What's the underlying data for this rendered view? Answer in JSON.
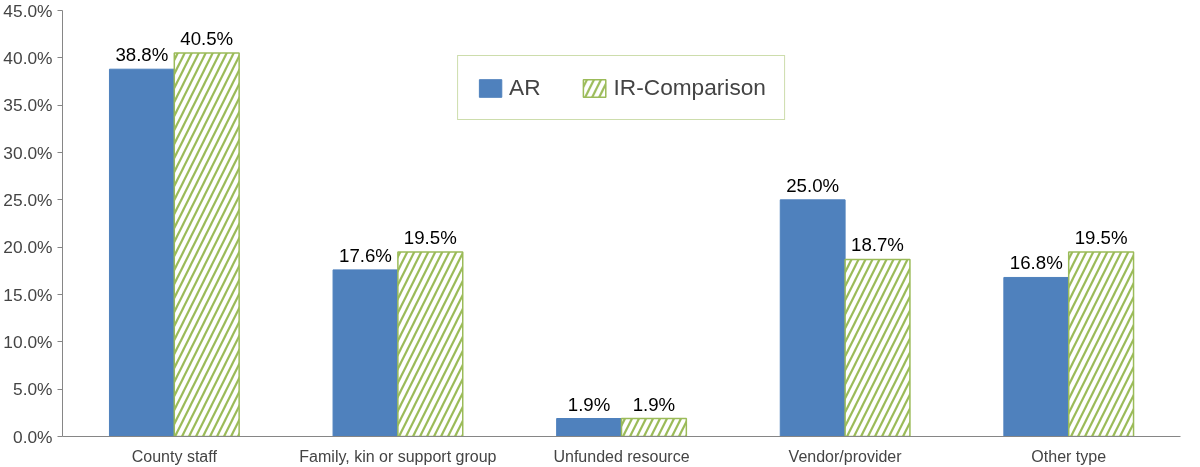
{
  "chart_data": {
    "type": "bar",
    "categories": [
      "County staff",
      "Family, kin or support group",
      "Unfunded resource",
      "Vendor/provider",
      "Other type"
    ],
    "series": [
      {
        "name": "AR",
        "color": "#4f81bd",
        "values": [
          38.8,
          17.6,
          1.9,
          25.0,
          16.8
        ],
        "value_labels": [
          "38.8%",
          "17.6%",
          "1.9%",
          "25.0%",
          "16.8%"
        ]
      },
      {
        "name": "IR-Comparison",
        "color": "#9bbb59",
        "values": [
          40.5,
          19.5,
          1.9,
          18.7,
          19.5
        ],
        "value_labels": [
          "40.5%",
          "19.5%",
          "1.9%",
          "18.7%",
          "19.5%"
        ]
      }
    ],
    "ylim": [
      0,
      45
    ],
    "yticks": [
      {
        "value": 0,
        "label": "0.0%"
      },
      {
        "value": 5,
        "label": "5.0%"
      },
      {
        "value": 10,
        "label": "10.0%"
      },
      {
        "value": 15,
        "label": "15.0%"
      },
      {
        "value": 20,
        "label": "20.0%"
      },
      {
        "value": 25,
        "label": "25.0%"
      },
      {
        "value": 30,
        "label": "30.0%"
      },
      {
        "value": 35,
        "label": "35.0%"
      },
      {
        "value": 40,
        "label": "40.0%"
      },
      {
        "value": 45,
        "label": "45.0%"
      }
    ],
    "grid": false,
    "legend": "top"
  }
}
